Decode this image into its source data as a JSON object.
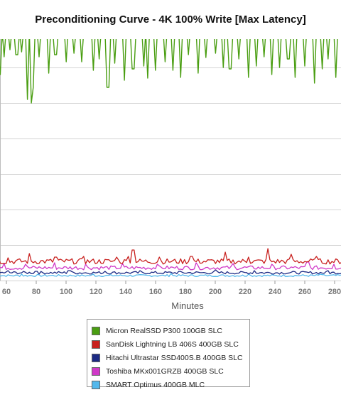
{
  "chart_data": {
    "type": "line",
    "title": "Preconditioning Curve - 4K 100% Write [Max Latency]",
    "xlabel": "Minutes",
    "ylabel": "",
    "xlim": [
      52,
      285
    ],
    "ylim": [
      0,
      340
    ],
    "x_ticks": [
      60,
      80,
      100,
      120,
      140,
      160,
      180,
      200,
      220,
      240,
      260,
      280
    ],
    "y_grid": [
      0,
      50,
      100,
      150,
      200,
      250,
      300
    ],
    "grid": "horizontal",
    "legend_position": "bottom-center",
    "series": [
      {
        "name": "Micron RealSSD P300 100GB SLC",
        "color": "#4a9e12",
        "baseline": 340,
        "spikes": [
          {
            "x": 52.5,
            "y": 310
          },
          {
            "x": 54,
            "y": 320
          },
          {
            "x": 55.5,
            "y": 290
          },
          {
            "x": 59,
            "y": 315
          },
          {
            "x": 62,
            "y": 325
          },
          {
            "x": 67,
            "y": 318
          },
          {
            "x": 70,
            "y": 322
          },
          {
            "x": 74,
            "y": 255
          },
          {
            "x": 76.5,
            "y": 250
          },
          {
            "x": 77.5,
            "y": 272
          },
          {
            "x": 82,
            "y": 315
          },
          {
            "x": 88,
            "y": 292
          },
          {
            "x": 93,
            "y": 318
          },
          {
            "x": 100,
            "y": 308
          },
          {
            "x": 105,
            "y": 320
          },
          {
            "x": 111,
            "y": 308
          },
          {
            "x": 118,
            "y": 296
          },
          {
            "x": 122,
            "y": 312
          },
          {
            "x": 128,
            "y": 272
          },
          {
            "x": 133,
            "y": 306
          },
          {
            "x": 139,
            "y": 282
          },
          {
            "x": 145,
            "y": 298
          },
          {
            "x": 152,
            "y": 302
          },
          {
            "x": 155,
            "y": 285
          },
          {
            "x": 160,
            "y": 296
          },
          {
            "x": 166,
            "y": 308
          },
          {
            "x": 172,
            "y": 296
          },
          {
            "x": 177,
            "y": 286
          },
          {
            "x": 182,
            "y": 318
          },
          {
            "x": 188,
            "y": 292
          },
          {
            "x": 194,
            "y": 314
          },
          {
            "x": 200,
            "y": 320
          },
          {
            "x": 205,
            "y": 300
          },
          {
            "x": 210,
            "y": 298
          },
          {
            "x": 216,
            "y": 312
          },
          {
            "x": 222,
            "y": 286
          },
          {
            "x": 227,
            "y": 302
          },
          {
            "x": 233,
            "y": 315
          },
          {
            "x": 238,
            "y": 290
          },
          {
            "x": 243,
            "y": 300
          },
          {
            "x": 249,
            "y": 312
          },
          {
            "x": 254,
            "y": 286
          },
          {
            "x": 260,
            "y": 302
          },
          {
            "x": 266,
            "y": 278
          },
          {
            "x": 272,
            "y": 298
          },
          {
            "x": 276,
            "y": 312
          },
          {
            "x": 281,
            "y": 286
          }
        ]
      },
      {
        "name": "SanDisk Lightning LB 406S 400GB SLC",
        "color": "#c8201e",
        "baseline": 27,
        "spikes": [
          {
            "x": 54,
            "y": 34
          },
          {
            "x": 61,
            "y": 32
          },
          {
            "x": 75,
            "y": 38
          },
          {
            "x": 93,
            "y": 33
          },
          {
            "x": 112,
            "y": 34
          },
          {
            "x": 134,
            "y": 33
          },
          {
            "x": 142,
            "y": 34
          },
          {
            "x": 145,
            "y": 43
          },
          {
            "x": 162,
            "y": 33
          },
          {
            "x": 184,
            "y": 34
          },
          {
            "x": 207,
            "y": 40
          },
          {
            "x": 222,
            "y": 33
          },
          {
            "x": 235,
            "y": 45
          },
          {
            "x": 251,
            "y": 37
          },
          {
            "x": 268,
            "y": 34
          }
        ]
      },
      {
        "name": "Hitachi Ultrastar SSD400S.B 400GB SLC",
        "color": "#1c2a84",
        "baseline": 11,
        "spikes": [
          {
            "x": 61,
            "y": 14
          },
          {
            "x": 80,
            "y": 13
          },
          {
            "x": 102,
            "y": 14
          },
          {
            "x": 126,
            "y": 13
          },
          {
            "x": 150,
            "y": 14
          },
          {
            "x": 176,
            "y": 13
          },
          {
            "x": 200,
            "y": 15
          },
          {
            "x": 226,
            "y": 14
          },
          {
            "x": 252,
            "y": 13
          },
          {
            "x": 276,
            "y": 14
          }
        ]
      },
      {
        "name": "Toshiba MKx001GRZB 400GB SLC",
        "color": "#d038c8",
        "baseline": 18,
        "spikes": [
          {
            "x": 58,
            "y": 24
          },
          {
            "x": 73,
            "y": 23
          },
          {
            "x": 92,
            "y": 25
          },
          {
            "x": 113,
            "y": 23
          },
          {
            "x": 138,
            "y": 24
          },
          {
            "x": 161,
            "y": 23
          },
          {
            "x": 187,
            "y": 25
          },
          {
            "x": 212,
            "y": 24
          },
          {
            "x": 238,
            "y": 23
          },
          {
            "x": 262,
            "y": 26
          },
          {
            "x": 279,
            "y": 23
          }
        ]
      },
      {
        "name": "SMART Optimus 400GB MLC",
        "color": "#52b8ec",
        "baseline": 7,
        "spikes": [
          {
            "x": 70,
            "y": 9
          },
          {
            "x": 118,
            "y": 9
          },
          {
            "x": 170,
            "y": 10
          },
          {
            "x": 222,
            "y": 9
          },
          {
            "x": 270,
            "y": 9
          }
        ]
      }
    ]
  }
}
